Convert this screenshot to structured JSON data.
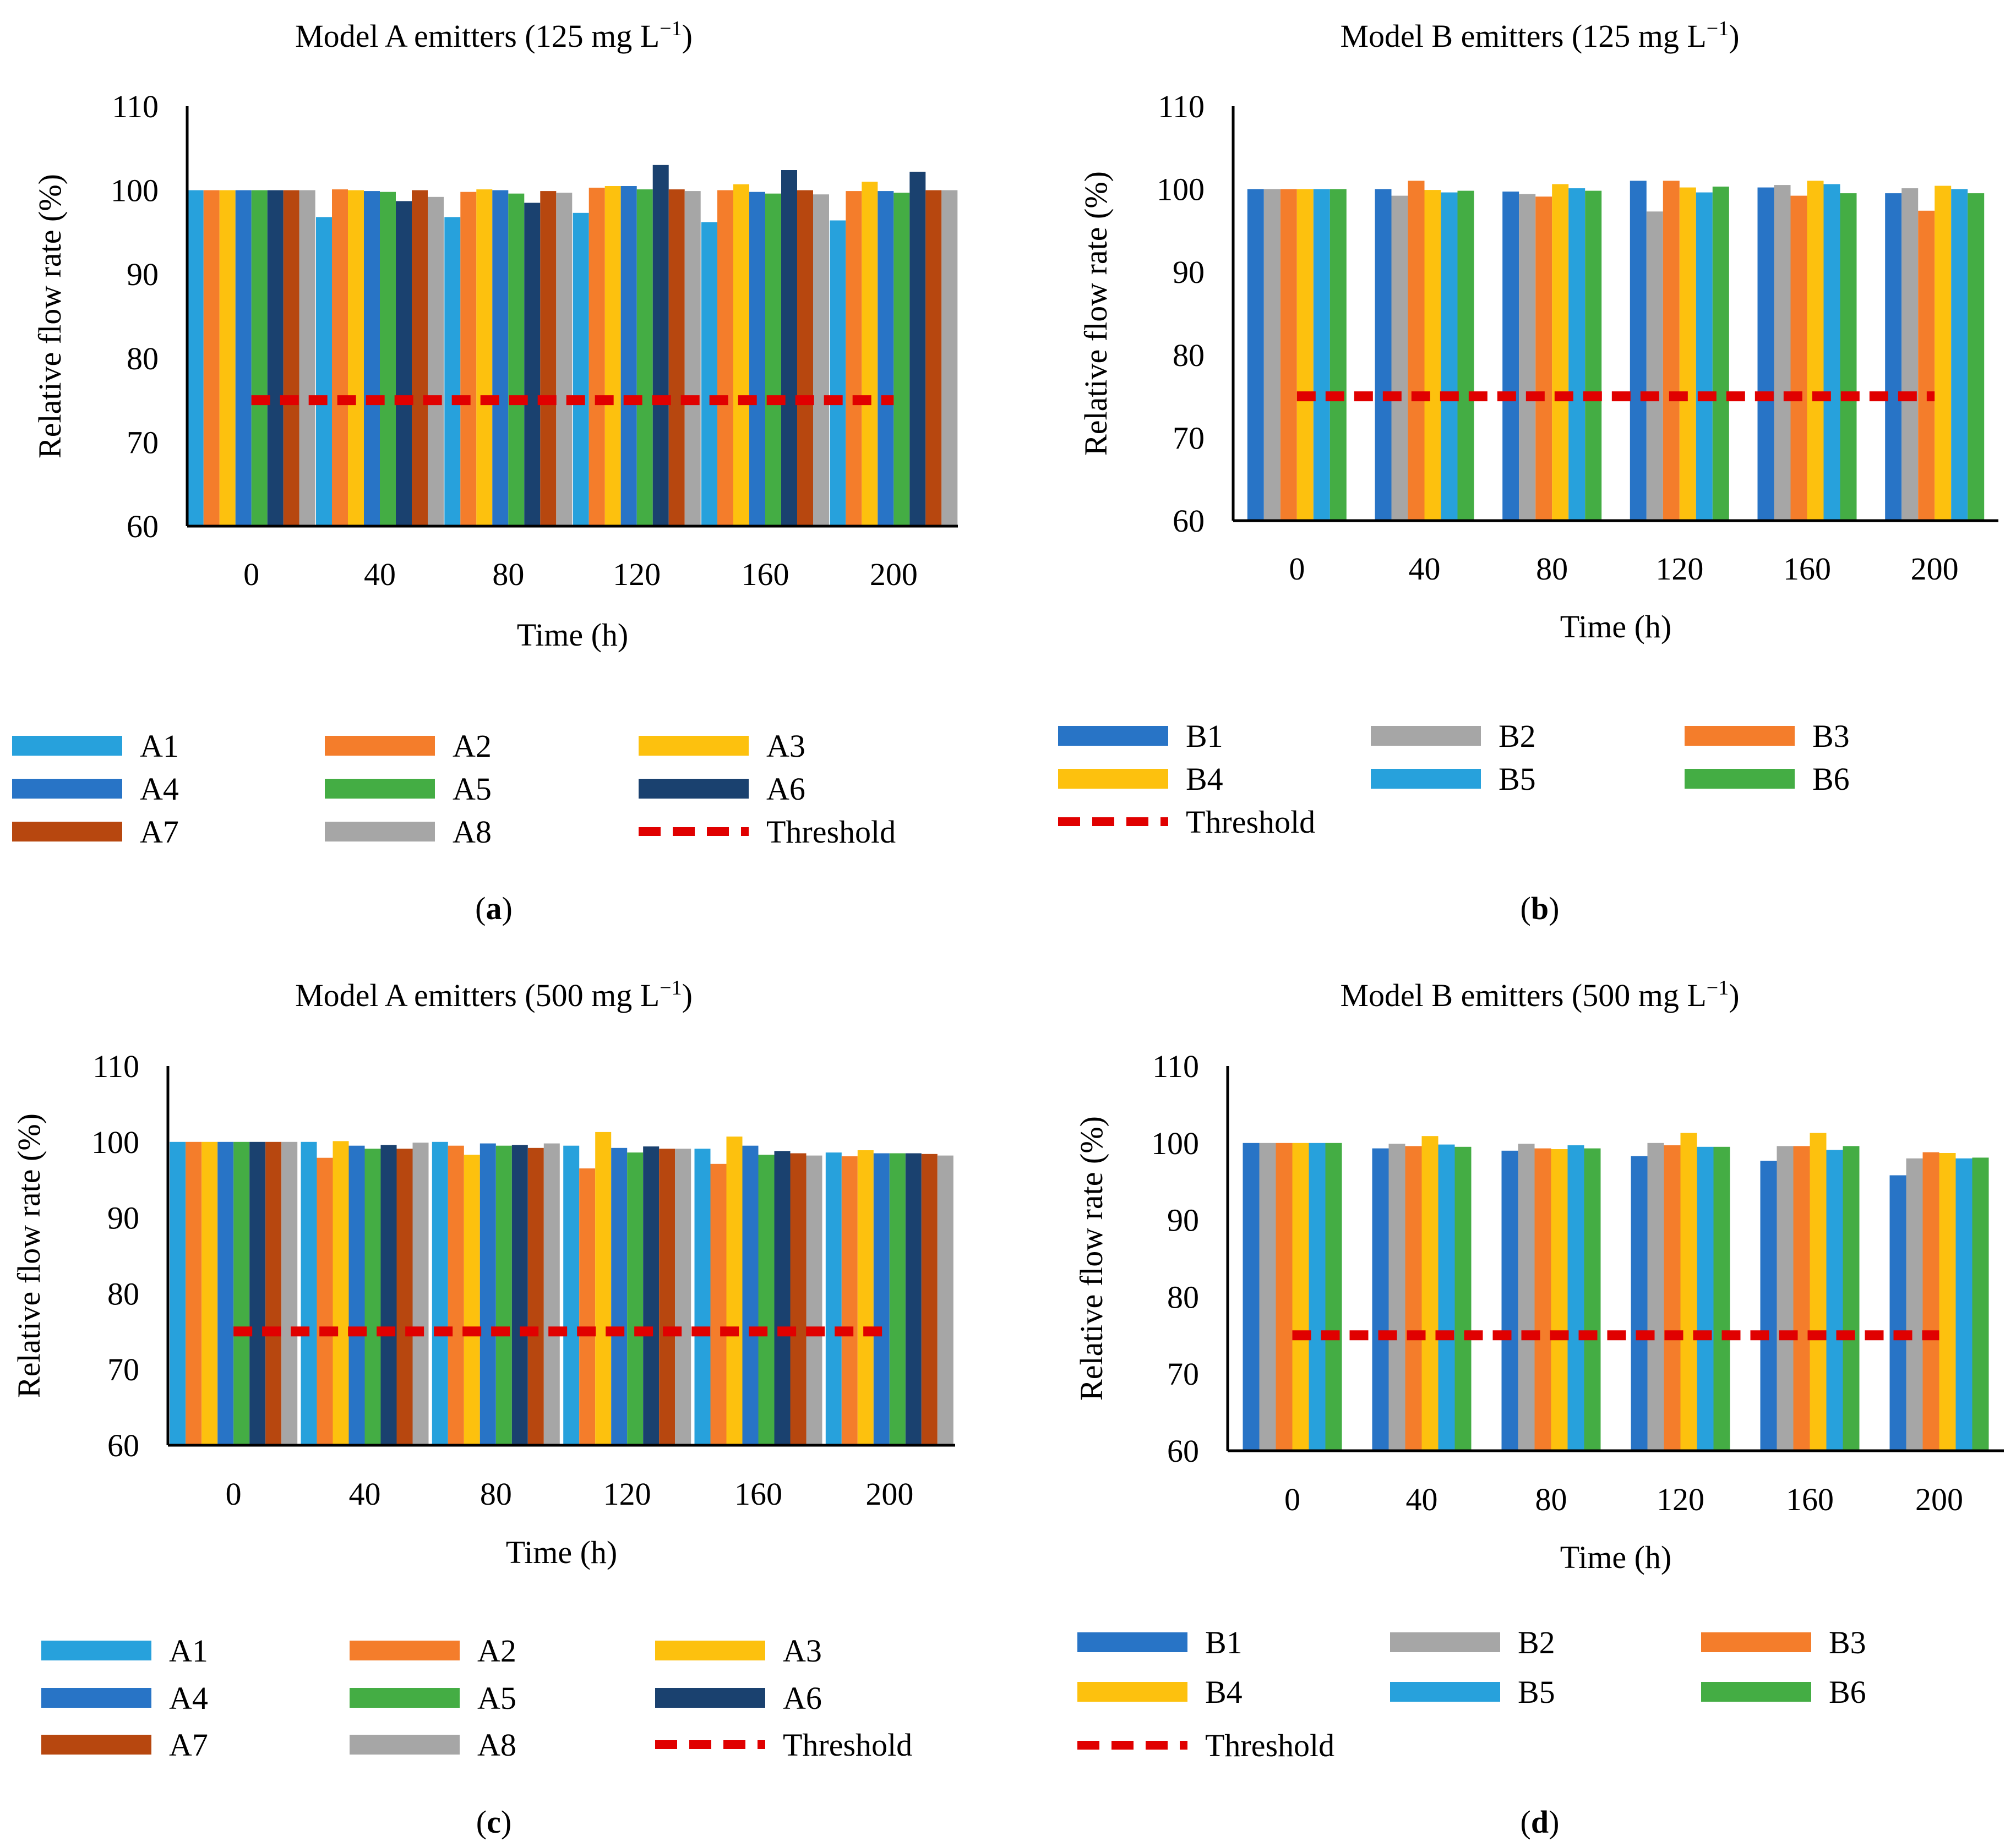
{
  "figure": {
    "series_colors": {
      "A1": "#27a1dc",
      "A2": "#f47d2b",
      "A3": "#fdc10e",
      "A4": "#2874c6",
      "A5": "#44ad44",
      "A6": "#1a416f",
      "A7": "#b7470f",
      "A8": "#a6a6a6",
      "B1": "#2874c6",
      "B2": "#a6a6a6",
      "B3": "#f47d2b",
      "B4": "#fdc10e",
      "B5": "#27a1dc",
      "B6": "#44ad44",
      "threshold": "#e00000"
    }
  },
  "chart_data": [
    {
      "id": "a",
      "type": "bar",
      "title": "Model A emitters (125 mg L",
      "title_sup": "−1",
      "title_end": ")",
      "panel_label": "a",
      "xlabel": "Time (h)",
      "ylabel": "Relative flow rate (%)",
      "ylim": [
        60,
        110
      ],
      "yticks": [
        60,
        70,
        80,
        90,
        100,
        110
      ],
      "categories": [
        "0",
        "40",
        "80",
        "120",
        "160",
        "200"
      ],
      "series": [
        {
          "name": "A1",
          "values": [
            100,
            96.8,
            96.8,
            97.3,
            96.2,
            96.4
          ]
        },
        {
          "name": "A2",
          "values": [
            100,
            100.1,
            99.8,
            100.3,
            100,
            99.9
          ]
        },
        {
          "name": "A3",
          "values": [
            100,
            100,
            100.1,
            100.5,
            100.7,
            101
          ]
        },
        {
          "name": "A4",
          "values": [
            100,
            99.9,
            100,
            100.5,
            99.8,
            99.9
          ]
        },
        {
          "name": "A5",
          "values": [
            100,
            99.8,
            99.6,
            100.1,
            99.6,
            99.7
          ]
        },
        {
          "name": "A6",
          "values": [
            100,
            98.7,
            98.5,
            103,
            102.4,
            102.2
          ]
        },
        {
          "name": "A7",
          "values": [
            100,
            100,
            99.9,
            100.1,
            100,
            100
          ]
        },
        {
          "name": "A8",
          "values": [
            100,
            99.2,
            99.7,
            99.9,
            99.5,
            100
          ]
        }
      ],
      "threshold": {
        "name": "Threshold",
        "value": 75
      },
      "legend": {
        "columns": 3,
        "entries": [
          "A1",
          "A2",
          "A3",
          "A4",
          "A5",
          "A6",
          "A7",
          "A8",
          "Threshold"
        ]
      }
    },
    {
      "id": "b",
      "type": "bar",
      "title": "Model B emitters (125 mg L",
      "title_sup": "−1",
      "title_end": ")",
      "panel_label": "b",
      "xlabel": "Time (h)",
      "ylabel": "Relative flow rate (%)",
      "ylim": [
        60,
        110
      ],
      "yticks": [
        60,
        70,
        80,
        90,
        100,
        110
      ],
      "categories": [
        "0",
        "40",
        "80",
        "120",
        "160",
        "200"
      ],
      "series": [
        {
          "name": "B1",
          "values": [
            100,
            100,
            99.7,
            101,
            100.2,
            99.5
          ]
        },
        {
          "name": "B2",
          "values": [
            100,
            99.2,
            99.4,
            97.3,
            100.5,
            100.1
          ]
        },
        {
          "name": "B3",
          "values": [
            100,
            101,
            99.1,
            101,
            99.2,
            97.4
          ]
        },
        {
          "name": "B4",
          "values": [
            100,
            99.9,
            100.6,
            100.2,
            101,
            100.4
          ]
        },
        {
          "name": "B5",
          "values": [
            100,
            99.6,
            100.1,
            99.6,
            100.6,
            100
          ]
        },
        {
          "name": "B6",
          "values": [
            100,
            99.8,
            99.8,
            100.3,
            99.5,
            99.5
          ]
        }
      ],
      "threshold": {
        "name": "Threshold",
        "value": 75
      },
      "legend": {
        "columns": 3,
        "entries": [
          "B1",
          "B2",
          "B3",
          "B4",
          "B5",
          "B6",
          "Threshold"
        ]
      }
    },
    {
      "id": "c",
      "type": "bar",
      "title": "Model A emitters (500 mg L",
      "title_sup": "−1",
      "title_end": ")",
      "panel_label": "c",
      "xlabel": "Time (h)",
      "ylabel": "Relative flow rate (%)",
      "ylim": [
        60,
        110
      ],
      "yticks": [
        60,
        70,
        80,
        90,
        100,
        110
      ],
      "categories": [
        "0",
        "40",
        "80",
        "120",
        "160",
        "200"
      ],
      "series": [
        {
          "name": "A1",
          "values": [
            100,
            100,
            100,
            99.5,
            99.1,
            98.6
          ]
        },
        {
          "name": "A2",
          "values": [
            100,
            97.9,
            99.5,
            96.5,
            97.1,
            98.1
          ]
        },
        {
          "name": "A3",
          "values": [
            100,
            100.1,
            98.3,
            101.3,
            100.7,
            98.9
          ]
        },
        {
          "name": "A4",
          "values": [
            100,
            99.5,
            99.8,
            99.2,
            99.5,
            98.5
          ]
        },
        {
          "name": "A5",
          "values": [
            100,
            99.1,
            99.5,
            98.6,
            98.3,
            98.5
          ]
        },
        {
          "name": "A6",
          "values": [
            100,
            99.6,
            99.6,
            99.4,
            98.8,
            98.5
          ]
        },
        {
          "name": "A7",
          "values": [
            100,
            99.1,
            99.2,
            99.1,
            98.5,
            98.4
          ]
        },
        {
          "name": "A8",
          "values": [
            100,
            99.9,
            99.8,
            99.1,
            98.2,
            98.2
          ]
        }
      ],
      "threshold": {
        "name": "Threshold",
        "value": 75
      },
      "legend": {
        "columns": 3,
        "entries": [
          "A1",
          "A2",
          "A3",
          "A4",
          "A5",
          "A6",
          "A7",
          "A8",
          "Threshold"
        ]
      }
    },
    {
      "id": "d",
      "type": "bar",
      "title": "Model B emitters (500 mg L",
      "title_sup": "−1",
      "title_end": ")",
      "panel_label": "d",
      "xlabel": "Time (h)",
      "ylabel": "Relative flow rate (%)",
      "ylim": [
        60,
        110
      ],
      "yticks": [
        60,
        70,
        80,
        90,
        100,
        110
      ],
      "categories": [
        "0",
        "40",
        "80",
        "120",
        "160",
        "200"
      ],
      "series": [
        {
          "name": "B1",
          "values": [
            100,
            99.3,
            99,
            98.3,
            97.7,
            95.8
          ]
        },
        {
          "name": "B2",
          "values": [
            100,
            99.9,
            99.9,
            100,
            99.6,
            98
          ]
        },
        {
          "name": "B3",
          "values": [
            100,
            99.6,
            99.3,
            99.7,
            99.6,
            98.8
          ]
        },
        {
          "name": "B4",
          "values": [
            100,
            100.9,
            99.2,
            101.3,
            101.3,
            98.7
          ]
        },
        {
          "name": "B5",
          "values": [
            100,
            99.8,
            99.7,
            99.5,
            99.1,
            98
          ]
        },
        {
          "name": "B6",
          "values": [
            100,
            99.5,
            99.3,
            99.5,
            99.6,
            98.1
          ]
        }
      ],
      "threshold": {
        "name": "Threshold",
        "value": 75
      },
      "legend": {
        "columns": 3,
        "entries": [
          "B1",
          "B2",
          "B3",
          "B4",
          "B5",
          "B6",
          "Threshold"
        ]
      }
    }
  ]
}
